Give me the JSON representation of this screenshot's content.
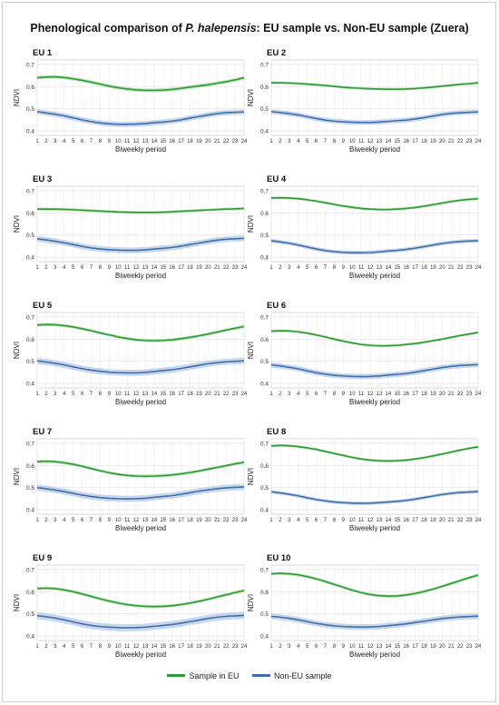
{
  "title": {
    "prefix": "Phenological comparison of ",
    "species": "P. halepensis",
    "suffix": ": EU sample vs. Non-EU sample (Zuera)"
  },
  "colors": {
    "eu": "#2e9a38",
    "eu_band": "#a8dca6",
    "noneu": "#3f6fa8",
    "noneu_band": "#b5c9e6"
  },
  "legend": [
    {
      "label": "Sample in EU",
      "series": "eu"
    },
    {
      "label": "Non-EU sample",
      "series": "noneu"
    }
  ],
  "chart_data": [
    {
      "type": "line",
      "title": "EU 1",
      "xlabel": "Biweekly period",
      "ylabel": "NDVI",
      "x": [
        1,
        2,
        3,
        4,
        5,
        6,
        7,
        8,
        9,
        10,
        11,
        12,
        13,
        14,
        15,
        16,
        17,
        18,
        19,
        20,
        21,
        22,
        23,
        24
      ],
      "ylim": [
        0.38,
        0.72
      ],
      "yticks": [
        0.4,
        0.5,
        0.6,
        0.7
      ],
      "grid": true,
      "series": [
        {
          "name": "Sample in EU",
          "values": [
            0.64,
            0.643,
            0.644,
            0.641,
            0.635,
            0.628,
            0.62,
            0.611,
            0.602,
            0.595,
            0.589,
            0.585,
            0.583,
            0.583,
            0.584,
            0.587,
            0.592,
            0.598,
            0.603,
            0.608,
            0.615,
            0.622,
            0.63,
            0.64
          ],
          "band": 0.008
        },
        {
          "name": "Non-EU sample",
          "values": [
            0.487,
            0.481,
            0.475,
            0.468,
            0.459,
            0.45,
            0.442,
            0.436,
            0.432,
            0.43,
            0.43,
            0.431,
            0.433,
            0.437,
            0.44,
            0.444,
            0.45,
            0.458,
            0.465,
            0.472,
            0.478,
            0.482,
            0.484,
            0.486
          ],
          "band": 0.012
        }
      ]
    },
    {
      "type": "line",
      "title": "EU 2",
      "xlabel": "Biweekly period",
      "ylabel": "NDVI",
      "x": [
        1,
        2,
        3,
        4,
        5,
        6,
        7,
        8,
        9,
        10,
        11,
        12,
        13,
        14,
        15,
        16,
        17,
        18,
        19,
        20,
        21,
        22,
        23,
        24
      ],
      "ylim": [
        0.38,
        0.72
      ],
      "yticks": [
        0.4,
        0.5,
        0.6,
        0.7
      ],
      "grid": true,
      "series": [
        {
          "name": "Sample in EU",
          "values": [
            0.617,
            0.617,
            0.616,
            0.614,
            0.611,
            0.608,
            0.605,
            0.601,
            0.597,
            0.594,
            0.592,
            0.59,
            0.589,
            0.588,
            0.588,
            0.589,
            0.591,
            0.594,
            0.598,
            0.602,
            0.606,
            0.61,
            0.613,
            0.617
          ],
          "band": 0.006
        },
        {
          "name": "Non-EU sample",
          "values": [
            0.487,
            0.483,
            0.478,
            0.472,
            0.464,
            0.456,
            0.449,
            0.444,
            0.441,
            0.439,
            0.438,
            0.438,
            0.44,
            0.443,
            0.446,
            0.449,
            0.454,
            0.46,
            0.467,
            0.474,
            0.479,
            0.482,
            0.484,
            0.486
          ],
          "band": 0.011
        }
      ]
    },
    {
      "type": "line",
      "title": "EU 3",
      "xlabel": "Biweekly period",
      "ylabel": "NDVI",
      "x": [
        1,
        2,
        3,
        4,
        5,
        6,
        7,
        8,
        9,
        10,
        11,
        12,
        13,
        14,
        15,
        16,
        17,
        18,
        19,
        20,
        21,
        22,
        23,
        24
      ],
      "ylim": [
        0.38,
        0.72
      ],
      "yticks": [
        0.4,
        0.5,
        0.6,
        0.7
      ],
      "grid": true,
      "series": [
        {
          "name": "Sample in EU",
          "values": [
            0.617,
            0.617,
            0.617,
            0.616,
            0.614,
            0.612,
            0.61,
            0.608,
            0.606,
            0.604,
            0.603,
            0.602,
            0.602,
            0.602,
            0.603,
            0.605,
            0.607,
            0.609,
            0.611,
            0.613,
            0.615,
            0.617,
            0.618,
            0.62
          ],
          "band": 0.006
        },
        {
          "name": "Non-EU sample",
          "values": [
            0.483,
            0.478,
            0.472,
            0.465,
            0.457,
            0.449,
            0.442,
            0.437,
            0.434,
            0.432,
            0.431,
            0.431,
            0.433,
            0.437,
            0.44,
            0.444,
            0.45,
            0.457,
            0.464,
            0.471,
            0.477,
            0.481,
            0.483,
            0.485
          ],
          "band": 0.013
        }
      ]
    },
    {
      "type": "line",
      "title": "EU 4",
      "xlabel": "Biweekly period",
      "ylabel": "NDVI",
      "x": [
        1,
        2,
        3,
        4,
        5,
        6,
        7,
        8,
        9,
        10,
        11,
        12,
        13,
        14,
        15,
        16,
        17,
        18,
        19,
        20,
        21,
        22,
        23,
        24
      ],
      "ylim": [
        0.38,
        0.72
      ],
      "yticks": [
        0.4,
        0.5,
        0.6,
        0.7
      ],
      "grid": true,
      "series": [
        {
          "name": "Sample in EU",
          "values": [
            0.667,
            0.668,
            0.667,
            0.664,
            0.659,
            0.653,
            0.646,
            0.638,
            0.631,
            0.625,
            0.62,
            0.617,
            0.615,
            0.615,
            0.617,
            0.62,
            0.624,
            0.63,
            0.637,
            0.644,
            0.651,
            0.657,
            0.661,
            0.664
          ],
          "band": 0.006
        },
        {
          "name": "Non-EU sample",
          "values": [
            0.474,
            0.469,
            0.463,
            0.455,
            0.446,
            0.437,
            0.43,
            0.425,
            0.422,
            0.42,
            0.42,
            0.421,
            0.424,
            0.428,
            0.431,
            0.435,
            0.441,
            0.448,
            0.455,
            0.462,
            0.467,
            0.471,
            0.473,
            0.474
          ],
          "band": 0.009
        }
      ]
    },
    {
      "type": "line",
      "title": "EU 5",
      "xlabel": "Biweekly period",
      "ylabel": "NDVI",
      "x": [
        1,
        2,
        3,
        4,
        5,
        6,
        7,
        8,
        9,
        10,
        11,
        12,
        13,
        14,
        15,
        16,
        17,
        18,
        19,
        20,
        21,
        22,
        23,
        24
      ],
      "ylim": [
        0.38,
        0.72
      ],
      "yticks": [
        0.4,
        0.5,
        0.6,
        0.7
      ],
      "grid": true,
      "series": [
        {
          "name": "Sample in EU",
          "values": [
            0.664,
            0.666,
            0.665,
            0.661,
            0.655,
            0.647,
            0.638,
            0.628,
            0.619,
            0.61,
            0.603,
            0.597,
            0.594,
            0.593,
            0.594,
            0.597,
            0.602,
            0.608,
            0.615,
            0.623,
            0.632,
            0.641,
            0.649,
            0.657
          ],
          "band": 0.007
        },
        {
          "name": "Non-EU sample",
          "values": [
            0.502,
            0.497,
            0.491,
            0.484,
            0.475,
            0.467,
            0.46,
            0.455,
            0.451,
            0.449,
            0.448,
            0.448,
            0.45,
            0.454,
            0.458,
            0.462,
            0.468,
            0.475,
            0.482,
            0.489,
            0.494,
            0.498,
            0.5,
            0.502
          ],
          "band": 0.014
        }
      ]
    },
    {
      "type": "line",
      "title": "EU 6",
      "xlabel": "Biweekly period",
      "ylabel": "NDVI",
      "x": [
        1,
        2,
        3,
        4,
        5,
        6,
        7,
        8,
        9,
        10,
        11,
        12,
        13,
        14,
        15,
        16,
        17,
        18,
        19,
        20,
        21,
        22,
        23,
        24
      ],
      "ylim": [
        0.38,
        0.72
      ],
      "yticks": [
        0.4,
        0.5,
        0.6,
        0.7
      ],
      "grid": true,
      "series": [
        {
          "name": "Sample in EU",
          "values": [
            0.636,
            0.638,
            0.637,
            0.633,
            0.627,
            0.619,
            0.61,
            0.6,
            0.591,
            0.583,
            0.576,
            0.572,
            0.57,
            0.57,
            0.572,
            0.576,
            0.58,
            0.586,
            0.593,
            0.6,
            0.608,
            0.616,
            0.623,
            0.63
          ],
          "band": 0.006
        },
        {
          "name": "Non-EU sample",
          "values": [
            0.484,
            0.479,
            0.473,
            0.466,
            0.457,
            0.449,
            0.442,
            0.437,
            0.434,
            0.432,
            0.431,
            0.432,
            0.434,
            0.438,
            0.441,
            0.445,
            0.451,
            0.458,
            0.465,
            0.472,
            0.477,
            0.481,
            0.483,
            0.485
          ],
          "band": 0.012
        }
      ]
    },
    {
      "type": "line",
      "title": "EU 7",
      "xlabel": "Biweekly period",
      "ylabel": "NDVI",
      "x": [
        1,
        2,
        3,
        4,
        5,
        6,
        7,
        8,
        9,
        10,
        11,
        12,
        13,
        14,
        15,
        16,
        17,
        18,
        19,
        20,
        21,
        22,
        23,
        24
      ],
      "ylim": [
        0.38,
        0.72
      ],
      "yticks": [
        0.4,
        0.5,
        0.6,
        0.7
      ],
      "grid": true,
      "series": [
        {
          "name": "Sample in EU",
          "values": [
            0.617,
            0.619,
            0.617,
            0.612,
            0.605,
            0.596,
            0.586,
            0.576,
            0.567,
            0.56,
            0.555,
            0.552,
            0.551,
            0.552,
            0.554,
            0.557,
            0.562,
            0.568,
            0.575,
            0.583,
            0.591,
            0.599,
            0.607,
            0.614
          ],
          "band": 0.007
        },
        {
          "name": "Non-EU sample",
          "values": [
            0.5,
            0.495,
            0.489,
            0.482,
            0.474,
            0.466,
            0.46,
            0.455,
            0.452,
            0.45,
            0.449,
            0.45,
            0.452,
            0.456,
            0.46,
            0.464,
            0.47,
            0.477,
            0.484,
            0.49,
            0.495,
            0.499,
            0.501,
            0.503
          ],
          "band": 0.014
        }
      ]
    },
    {
      "type": "line",
      "title": "EU 8",
      "xlabel": "Biweekly period",
      "ylabel": "NDVI",
      "x": [
        1,
        2,
        3,
        4,
        5,
        6,
        7,
        8,
        9,
        10,
        11,
        12,
        13,
        14,
        15,
        16,
        17,
        18,
        19,
        20,
        21,
        22,
        23,
        24
      ],
      "ylim": [
        0.38,
        0.72
      ],
      "yticks": [
        0.4,
        0.5,
        0.6,
        0.7
      ],
      "grid": true,
      "series": [
        {
          "name": "Sample in EU",
          "values": [
            0.688,
            0.69,
            0.689,
            0.685,
            0.679,
            0.672,
            0.663,
            0.654,
            0.645,
            0.636,
            0.629,
            0.624,
            0.621,
            0.62,
            0.621,
            0.624,
            0.629,
            0.635,
            0.643,
            0.651,
            0.66,
            0.669,
            0.677,
            0.684
          ],
          "band": 0.006
        },
        {
          "name": "Non-EU sample",
          "values": [
            0.481,
            0.476,
            0.47,
            0.463,
            0.454,
            0.446,
            0.44,
            0.435,
            0.432,
            0.43,
            0.429,
            0.43,
            0.432,
            0.435,
            0.438,
            0.442,
            0.448,
            0.455,
            0.462,
            0.469,
            0.474,
            0.478,
            0.48,
            0.482
          ],
          "band": 0.008
        }
      ]
    },
    {
      "type": "line",
      "title": "EU 9",
      "xlabel": "Biweekly period",
      "ylabel": "NDVI",
      "x": [
        1,
        2,
        3,
        4,
        5,
        6,
        7,
        8,
        9,
        10,
        11,
        12,
        13,
        14,
        15,
        16,
        17,
        18,
        19,
        20,
        21,
        22,
        23,
        24
      ],
      "ylim": [
        0.38,
        0.72
      ],
      "yticks": [
        0.4,
        0.5,
        0.6,
        0.7
      ],
      "grid": true,
      "series": [
        {
          "name": "Sample in EU",
          "values": [
            0.614,
            0.616,
            0.614,
            0.608,
            0.6,
            0.59,
            0.579,
            0.568,
            0.558,
            0.549,
            0.542,
            0.537,
            0.534,
            0.533,
            0.534,
            0.537,
            0.542,
            0.549,
            0.557,
            0.566,
            0.576,
            0.586,
            0.596,
            0.605
          ],
          "band": 0.007
        },
        {
          "name": "Non-EU sample",
          "values": [
            0.492,
            0.487,
            0.481,
            0.473,
            0.464,
            0.455,
            0.448,
            0.443,
            0.44,
            0.438,
            0.437,
            0.438,
            0.44,
            0.444,
            0.448,
            0.452,
            0.458,
            0.465,
            0.472,
            0.479,
            0.485,
            0.489,
            0.491,
            0.493
          ],
          "band": 0.016
        }
      ]
    },
    {
      "type": "line",
      "title": "EU 10",
      "xlabel": "Biweekly period",
      "ylabel": "NDVI",
      "x": [
        1,
        2,
        3,
        4,
        5,
        6,
        7,
        8,
        9,
        10,
        11,
        12,
        13,
        14,
        15,
        16,
        17,
        18,
        19,
        20,
        21,
        22,
        23,
        24
      ],
      "ylim": [
        0.38,
        0.72
      ],
      "yticks": [
        0.4,
        0.5,
        0.6,
        0.7
      ],
      "grid": true,
      "series": [
        {
          "name": "Sample in EU",
          "values": [
            0.681,
            0.683,
            0.681,
            0.676,
            0.668,
            0.658,
            0.646,
            0.633,
            0.62,
            0.607,
            0.596,
            0.587,
            0.582,
            0.58,
            0.581,
            0.585,
            0.592,
            0.601,
            0.612,
            0.624,
            0.637,
            0.65,
            0.663,
            0.675
          ],
          "band": 0.007
        },
        {
          "name": "Non-EU sample",
          "values": [
            0.489,
            0.485,
            0.48,
            0.473,
            0.465,
            0.457,
            0.451,
            0.446,
            0.443,
            0.441,
            0.44,
            0.441,
            0.443,
            0.447,
            0.451,
            0.455,
            0.461,
            0.467,
            0.473,
            0.479,
            0.483,
            0.486,
            0.488,
            0.49
          ],
          "band": 0.013
        }
      ]
    }
  ]
}
